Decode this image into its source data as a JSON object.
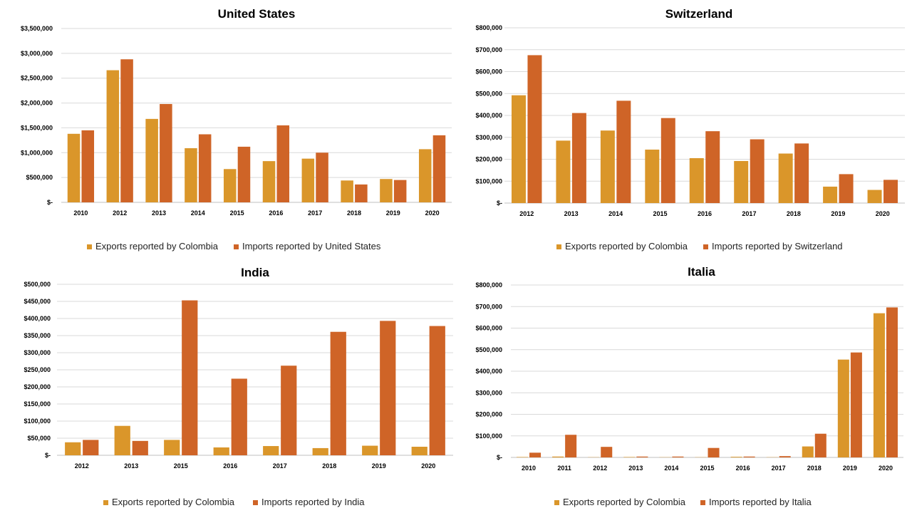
{
  "colors": {
    "exports": "#DA962A",
    "imports": "#CF6427"
  },
  "chart_data": [
    {
      "type": "bar",
      "title": "United States",
      "categories": [
        "2010",
        "2012",
        "2013",
        "2014",
        "2015",
        "2016",
        "2017",
        "2018",
        "2019",
        "2020"
      ],
      "series": [
        {
          "name": "Exports reported by Colombia",
          "values": [
            1380000,
            2660000,
            1680000,
            1090000,
            670000,
            830000,
            880000,
            440000,
            470000,
            1070000
          ]
        },
        {
          "name": "Imports reported by United States",
          "values": [
            1450000,
            2880000,
            1980000,
            1370000,
            1120000,
            1550000,
            1000000,
            360000,
            450000,
            1350000
          ]
        }
      ],
      "ylim": [
        0,
        3500000
      ],
      "yticks": [
        0,
        500000,
        1000000,
        1500000,
        2000000,
        2500000,
        3000000,
        3500000
      ],
      "ytick_labels": [
        "$-",
        "$500,000",
        "$1,000,000",
        "$1,500,000",
        "$2,000,000",
        "$2,500,000",
        "$3,000,000",
        "$3,500,000"
      ],
      "grid": true,
      "legend": "bottom"
    },
    {
      "type": "bar",
      "title": "Switzerland",
      "categories": [
        "2012",
        "2013",
        "2014",
        "2015",
        "2016",
        "2017",
        "2018",
        "2019",
        "2020"
      ],
      "series": [
        {
          "name": "Exports reported by Colombia",
          "values": [
            492000,
            285000,
            331000,
            244000,
            205000,
            192000,
            226000,
            75000,
            60000
          ]
        },
        {
          "name": "Imports reported by Switzerland",
          "values": [
            675000,
            411000,
            467000,
            388000,
            328000,
            291000,
            272000,
            132000,
            106000
          ]
        }
      ],
      "ylim": [
        0,
        800000
      ],
      "yticks": [
        0,
        100000,
        200000,
        300000,
        400000,
        500000,
        600000,
        700000,
        800000
      ],
      "ytick_labels": [
        "$-",
        "$100,000",
        "$200,000",
        "$300,000",
        "$400,000",
        "$500,000",
        "$600,000",
        "$700,000",
        "$800,000"
      ],
      "grid": true,
      "legend": "bottom"
    },
    {
      "type": "bar",
      "title": "India",
      "categories": [
        "2012",
        "2013",
        "2015",
        "2016",
        "2017",
        "2018",
        "2019",
        "2020"
      ],
      "series": [
        {
          "name": "Exports reported by Colombia",
          "values": [
            38000,
            86000,
            45000,
            23000,
            27000,
            21000,
            28000,
            25000
          ]
        },
        {
          "name": "Imports reported by India",
          "values": [
            45000,
            42000,
            453000,
            224000,
            262000,
            361000,
            393000,
            378000
          ]
        }
      ],
      "ylim": [
        0,
        500000
      ],
      "yticks": [
        0,
        50000,
        100000,
        150000,
        200000,
        250000,
        300000,
        350000,
        400000,
        450000,
        500000
      ],
      "ytick_labels": [
        "$-",
        "$50,000",
        "$100,000",
        "$150,000",
        "$200,000",
        "$250,000",
        "$300,000",
        "$350,000",
        "$400,000",
        "$450,000",
        "$500,000"
      ],
      "grid": true,
      "legend": "bottom"
    },
    {
      "type": "bar",
      "title": "Italia",
      "categories": [
        "2010",
        "2011",
        "2012",
        "2013",
        "2014",
        "2015",
        "2016",
        "2017",
        "2018",
        "2019",
        "2020"
      ],
      "series": [
        {
          "name": "Exports reported by Colombia",
          "values": [
            2000,
            4000,
            1000,
            2000,
            1000,
            1000,
            3000,
            1000,
            51000,
            454000,
            669000
          ]
        },
        {
          "name": "Imports reported by Italia",
          "values": [
            22000,
            105000,
            49000,
            4000,
            4000,
            44000,
            4000,
            6000,
            110000,
            487000,
            696000
          ]
        }
      ],
      "ylim": [
        0,
        800000
      ],
      "yticks": [
        0,
        100000,
        200000,
        300000,
        400000,
        500000,
        600000,
        700000,
        800000
      ],
      "ytick_labels": [
        "$-",
        "$100,000",
        "$200,000",
        "$300,000",
        "$400,000",
        "$500,000",
        "$600,000",
        "$700,000",
        "$800,000"
      ],
      "grid": true,
      "legend": "bottom"
    }
  ]
}
